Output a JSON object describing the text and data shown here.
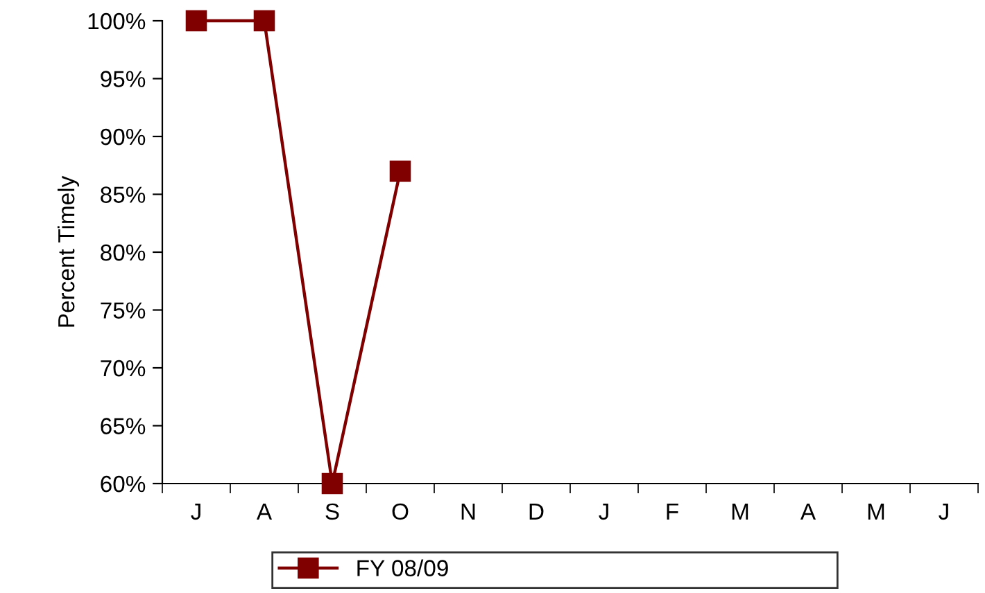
{
  "chart_data": {
    "type": "line",
    "ylabel": "Percent Timely",
    "categories": [
      "J",
      "A",
      "S",
      "O",
      "N",
      "D",
      "J",
      "F",
      "M",
      "A",
      "M",
      "J"
    ],
    "series": [
      {
        "name": "FY 08/09",
        "color": "#800000",
        "values": [
          100,
          100,
          60,
          87,
          null,
          null,
          null,
          null,
          null,
          null,
          null,
          null
        ]
      }
    ],
    "ylim": [
      60,
      100
    ],
    "yticks": [
      {
        "value": 60,
        "label": "60%"
      },
      {
        "value": 65,
        "label": "65%"
      },
      {
        "value": 70,
        "label": "70%"
      },
      {
        "value": 75,
        "label": "75%"
      },
      {
        "value": 80,
        "label": "80%"
      },
      {
        "value": 85,
        "label": "85%"
      },
      {
        "value": 90,
        "label": "90%"
      },
      {
        "value": 95,
        "label": "95%"
      },
      {
        "value": 100,
        "label": "100%"
      }
    ],
    "grid": false,
    "legend": "bottom",
    "marker": "square",
    "line_style": "solid"
  }
}
